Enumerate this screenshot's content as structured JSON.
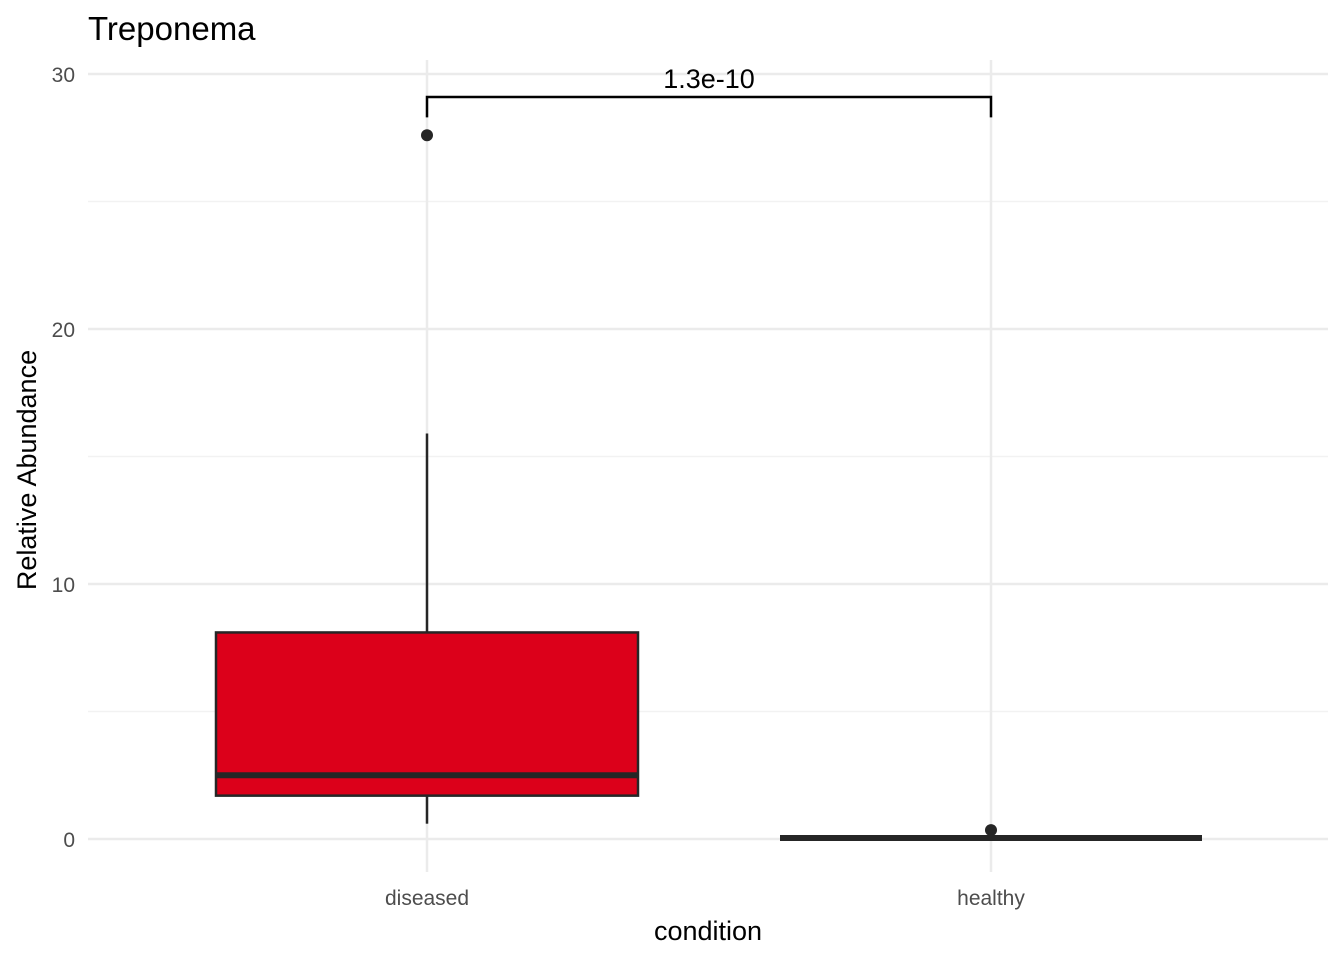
{
  "chart_data": {
    "type": "boxplot",
    "title": "Treponema",
    "xlabel": "condition",
    "ylabel": "Relative Abundance",
    "categories": [
      "diseased",
      "healthy"
    ],
    "ylim": [
      -1.1,
      30.5
    ],
    "y_ticks": [
      0,
      10,
      20,
      30
    ],
    "y_tick_labels": [
      "0",
      "10",
      "20",
      "30"
    ],
    "y_minor_ticks": [
      5,
      15,
      25
    ],
    "grid": true,
    "legend": "none",
    "boxes": [
      {
        "category": "diseased",
        "min": 0.6,
        "q1": 1.7,
        "median": 2.5,
        "q3": 8.1,
        "max": 15.9,
        "outliers": [
          27.6
        ],
        "fill": "#DC001A"
      },
      {
        "category": "healthy",
        "min": 0.0,
        "q1": 0.0,
        "median": 0.0,
        "q3": 0.05,
        "max": 0.05,
        "outliers": [
          0.35
        ],
        "fill": "#2b2b2b"
      }
    ],
    "annotation": {
      "label": "1.3e-10",
      "from": "diseased",
      "to": "healthy",
      "y": 29.1,
      "tip_y": 28.3
    },
    "colors": {
      "diseased_fill": "#DC001A",
      "outline": "#262626",
      "grid": "#ebebeb",
      "tick_text": "#4d4d4d"
    }
  }
}
